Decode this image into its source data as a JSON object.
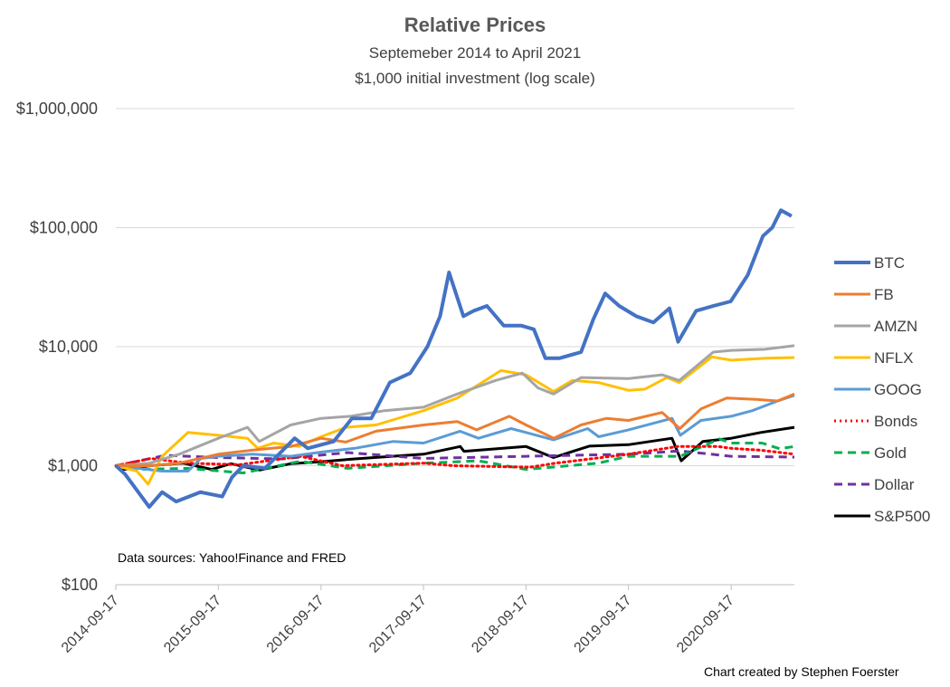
{
  "chart_data": {
    "type": "line",
    "title": "Relative Prices",
    "subtitle_lines": [
      "Septemeber 2014 to April 2021",
      "$1,000 initial investment (log scale)"
    ],
    "xlabel": "",
    "ylabel": "",
    "y_scale": "log",
    "ylim": [
      100,
      1000000
    ],
    "y_ticks": [
      100,
      1000,
      10000,
      100000,
      1000000
    ],
    "y_tick_labels": [
      "$100",
      "$1,000",
      "$10,000",
      "$100,000",
      "$1,000,000"
    ],
    "x_range": [
      "2014-09-17",
      "2021-04-30"
    ],
    "x_tick_labels": [
      "2014-09-17",
      "2015-09-17",
      "2016-09-17",
      "2017-09-17",
      "2018-09-17",
      "2019-09-17",
      "2020-09-17"
    ],
    "grid": "horizontal",
    "legend_position": "right",
    "source_note": "Data sources: Yahoo!Finance and FRED",
    "credit": "Chart created by Stephen Foerster",
    "series": [
      {
        "name": "BTC",
        "color": "#4472C4",
        "style": "solid",
        "width": 4,
        "points": [
          [
            "2014-09-17",
            1000
          ],
          [
            "2014-10-20",
            850
          ],
          [
            "2015-01-14",
            450
          ],
          [
            "2015-03-01",
            600
          ],
          [
            "2015-04-20",
            500
          ],
          [
            "2015-07-15",
            600
          ],
          [
            "2015-10-01",
            550
          ],
          [
            "2015-11-05",
            800
          ],
          [
            "2015-12-15",
            1000
          ],
          [
            "2016-03-01",
            950
          ],
          [
            "2016-06-15",
            1700
          ],
          [
            "2016-08-01",
            1400
          ],
          [
            "2016-11-01",
            1600
          ],
          [
            "2017-01-05",
            2500
          ],
          [
            "2017-03-15",
            2500
          ],
          [
            "2017-05-20",
            5000
          ],
          [
            "2017-08-01",
            6000
          ],
          [
            "2017-10-01",
            10000
          ],
          [
            "2017-11-15",
            18000
          ],
          [
            "2017-12-17",
            42000
          ],
          [
            "2018-02-06",
            18000
          ],
          [
            "2018-03-15",
            20000
          ],
          [
            "2018-05-01",
            22000
          ],
          [
            "2018-06-30",
            15000
          ],
          [
            "2018-09-01",
            15000
          ],
          [
            "2018-10-15",
            14000
          ],
          [
            "2018-11-25",
            8000
          ],
          [
            "2019-01-15",
            8000
          ],
          [
            "2019-04-01",
            9000
          ],
          [
            "2019-05-15",
            17000
          ],
          [
            "2019-06-26",
            28000
          ],
          [
            "2019-08-15",
            22000
          ],
          [
            "2019-10-15",
            18000
          ],
          [
            "2019-12-15",
            16000
          ],
          [
            "2020-02-10",
            21000
          ],
          [
            "2020-03-12",
            11000
          ],
          [
            "2020-05-15",
            20000
          ],
          [
            "2020-07-15",
            22000
          ],
          [
            "2020-09-15",
            24000
          ],
          [
            "2020-11-15",
            40000
          ],
          [
            "2021-01-08",
            85000
          ],
          [
            "2021-02-10",
            100000
          ],
          [
            "2021-03-13",
            140000
          ],
          [
            "2021-04-20",
            125000
          ]
        ]
      },
      {
        "name": "FB",
        "color": "#ED7D31",
        "style": "solid",
        "width": 3,
        "points": [
          [
            "2014-09-17",
            1000
          ],
          [
            "2015-01-15",
            1000
          ],
          [
            "2015-05-01",
            1050
          ],
          [
            "2015-09-17",
            1250
          ],
          [
            "2016-01-15",
            1350
          ],
          [
            "2016-06-01",
            1450
          ],
          [
            "2016-09-17",
            1700
          ],
          [
            "2016-12-15",
            1580
          ],
          [
            "2017-04-01",
            1950
          ],
          [
            "2017-09-17",
            2200
          ],
          [
            "2018-01-15",
            2350
          ],
          [
            "2018-03-25",
            2000
          ],
          [
            "2018-07-20",
            2600
          ],
          [
            "2018-09-17",
            2200
          ],
          [
            "2018-12-25",
            1700
          ],
          [
            "2019-04-01",
            2200
          ],
          [
            "2019-07-01",
            2500
          ],
          [
            "2019-09-17",
            2400
          ],
          [
            "2020-01-15",
            2800
          ],
          [
            "2020-03-18",
            2050
          ],
          [
            "2020-06-01",
            3000
          ],
          [
            "2020-09-01",
            3700
          ],
          [
            "2020-12-15",
            3600
          ],
          [
            "2021-03-01",
            3500
          ],
          [
            "2021-04-30",
            4000
          ]
        ]
      },
      {
        "name": "AMZN",
        "color": "#A5A5A5",
        "style": "solid",
        "width": 3,
        "points": [
          [
            "2014-09-17",
            1000
          ],
          [
            "2015-01-15",
            1050
          ],
          [
            "2015-05-01",
            1250
          ],
          [
            "2015-09-17",
            1700
          ],
          [
            "2015-12-30",
            2100
          ],
          [
            "2016-02-10",
            1600
          ],
          [
            "2016-06-01",
            2200
          ],
          [
            "2016-09-17",
            2500
          ],
          [
            "2017-01-01",
            2600
          ],
          [
            "2017-05-01",
            2900
          ],
          [
            "2017-09-17",
            3100
          ],
          [
            "2018-01-15",
            4000
          ],
          [
            "2018-06-01",
            5200
          ],
          [
            "2018-09-04",
            6000
          ],
          [
            "2018-10-30",
            4500
          ],
          [
            "2018-12-24",
            4000
          ],
          [
            "2019-04-01",
            5500
          ],
          [
            "2019-09-17",
            5400
          ],
          [
            "2020-01-15",
            5800
          ],
          [
            "2020-03-16",
            5200
          ],
          [
            "2020-07-15",
            9000
          ],
          [
            "2020-09-17",
            9300
          ],
          [
            "2021-01-15",
            9500
          ],
          [
            "2021-04-30",
            10200
          ]
        ]
      },
      {
        "name": "NFLX",
        "color": "#FFC000",
        "style": "solid",
        "width": 3,
        "points": [
          [
            "2014-09-17",
            1000
          ],
          [
            "2014-12-01",
            900
          ],
          [
            "2015-01-10",
            700
          ],
          [
            "2015-03-01",
            1200
          ],
          [
            "2015-06-01",
            1900
          ],
          [
            "2015-09-17",
            1800
          ],
          [
            "2015-12-30",
            1700
          ],
          [
            "2016-02-05",
            1400
          ],
          [
            "2016-04-01",
            1550
          ],
          [
            "2016-06-30",
            1450
          ],
          [
            "2016-09-17",
            1750
          ],
          [
            "2016-12-15",
            2100
          ],
          [
            "2017-04-01",
            2200
          ],
          [
            "2017-09-17",
            2900
          ],
          [
            "2018-01-15",
            3700
          ],
          [
            "2018-06-20",
            6300
          ],
          [
            "2018-09-17",
            5800
          ],
          [
            "2018-12-24",
            4200
          ],
          [
            "2019-03-01",
            5200
          ],
          [
            "2019-06-01",
            5000
          ],
          [
            "2019-09-17",
            4300
          ],
          [
            "2019-11-15",
            4400
          ],
          [
            "2020-02-01",
            5500
          ],
          [
            "2020-03-16",
            5000
          ],
          [
            "2020-07-10",
            8200
          ],
          [
            "2020-09-17",
            7700
          ],
          [
            "2021-01-20",
            8000
          ],
          [
            "2021-04-30",
            8100
          ]
        ]
      },
      {
        "name": "GOOG",
        "color": "#5B9BD5",
        "style": "solid",
        "width": 3,
        "points": [
          [
            "2014-09-17",
            1000
          ],
          [
            "2015-03-01",
            900
          ],
          [
            "2015-06-01",
            900
          ],
          [
            "2015-07-17",
            1150
          ],
          [
            "2015-09-17",
            1200
          ],
          [
            "2016-01-15",
            1250
          ],
          [
            "2016-06-01",
            1200
          ],
          [
            "2016-09-17",
            1300
          ],
          [
            "2017-01-15",
            1400
          ],
          [
            "2017-06-01",
            1600
          ],
          [
            "2017-09-17",
            1550
          ],
          [
            "2018-01-25",
            1950
          ],
          [
            "2018-04-01",
            1700
          ],
          [
            "2018-07-26",
            2050
          ],
          [
            "2018-09-17",
            1900
          ],
          [
            "2018-12-24",
            1650
          ],
          [
            "2019-04-25",
            2050
          ],
          [
            "2019-06-03",
            1750
          ],
          [
            "2019-09-17",
            2000
          ],
          [
            "2020-02-19",
            2500
          ],
          [
            "2020-03-20",
            1800
          ],
          [
            "2020-06-01",
            2400
          ],
          [
            "2020-09-17",
            2600
          ],
          [
            "2020-12-01",
            2900
          ],
          [
            "2021-03-01",
            3500
          ],
          [
            "2021-04-30",
            3900
          ]
        ]
      },
      {
        "name": "Bonds",
        "color": "#FF0000",
        "style": "dotted",
        "width": 3,
        "points": [
          [
            "2014-09-17",
            1000
          ],
          [
            "2015-01-20",
            1150
          ],
          [
            "2015-06-01",
            1050
          ],
          [
            "2015-12-01",
            1020
          ],
          [
            "2016-07-05",
            1200
          ],
          [
            "2016-12-01",
            1000
          ],
          [
            "2017-09-17",
            1050
          ],
          [
            "2018-01-01",
            1000
          ],
          [
            "2018-10-01",
            970
          ],
          [
            "2019-01-01",
            1050
          ],
          [
            "2019-09-17",
            1250
          ],
          [
            "2020-03-09",
            1450
          ],
          [
            "2020-08-01",
            1450
          ],
          [
            "2020-09-17",
            1400
          ],
          [
            "2021-01-01",
            1350
          ],
          [
            "2021-04-30",
            1250
          ]
        ]
      },
      {
        "name": "Gold",
        "color": "#00B050",
        "style": "dashed",
        "width": 3,
        "points": [
          [
            "2014-09-17",
            1000
          ],
          [
            "2014-12-01",
            930
          ],
          [
            "2015-06-01",
            950
          ],
          [
            "2015-12-15",
            870
          ],
          [
            "2016-07-05",
            1090
          ],
          [
            "2016-12-20",
            950
          ],
          [
            "2017-09-17",
            1050
          ],
          [
            "2018-04-01",
            1100
          ],
          [
            "2018-09-17",
            930
          ],
          [
            "2019-06-01",
            1050
          ],
          [
            "2019-09-17",
            1200
          ],
          [
            "2020-03-19",
            1200
          ],
          [
            "2020-08-06",
            1680
          ],
          [
            "2020-09-17",
            1550
          ],
          [
            "2021-01-05",
            1550
          ],
          [
            "2021-03-08",
            1390
          ],
          [
            "2021-04-30",
            1450
          ]
        ]
      },
      {
        "name": "Dollar",
        "color": "#7030A0",
        "style": "dashed",
        "width": 3,
        "points": [
          [
            "2014-09-17",
            1000
          ],
          [
            "2015-03-13",
            1220
          ],
          [
            "2015-09-17",
            1170
          ],
          [
            "2016-05-01",
            1140
          ],
          [
            "2016-12-20",
            1290
          ],
          [
            "2017-09-17",
            1150
          ],
          [
            "2018-09-17",
            1200
          ],
          [
            "2019-09-17",
            1250
          ],
          [
            "2020-03-19",
            1330
          ],
          [
            "2020-09-17",
            1200
          ],
          [
            "2021-04-30",
            1180
          ]
        ]
      },
      {
        "name": "S&P500",
        "color": "#000000",
        "style": "solid",
        "width": 3,
        "points": [
          [
            "2014-09-17",
            1000
          ],
          [
            "2014-10-15",
            930
          ],
          [
            "2015-01-15",
            1000
          ],
          [
            "2015-05-15",
            1050
          ],
          [
            "2015-08-25",
            930
          ],
          [
            "2015-11-01",
            1040
          ],
          [
            "2016-02-11",
            920
          ],
          [
            "2016-06-01",
            1040
          ],
          [
            "2016-09-17",
            1080
          ],
          [
            "2017-01-15",
            1140
          ],
          [
            "2017-09-17",
            1250
          ],
          [
            "2018-01-26",
            1450
          ],
          [
            "2018-02-08",
            1320
          ],
          [
            "2018-09-17",
            1450
          ],
          [
            "2018-12-24",
            1170
          ],
          [
            "2019-04-30",
            1460
          ],
          [
            "2019-09-17",
            1500
          ],
          [
            "2020-02-19",
            1700
          ],
          [
            "2020-03-23",
            1100
          ],
          [
            "2020-06-08",
            1600
          ],
          [
            "2020-09-17",
            1700
          ],
          [
            "2020-12-31",
            1900
          ],
          [
            "2021-04-30",
            2100
          ]
        ]
      }
    ]
  }
}
